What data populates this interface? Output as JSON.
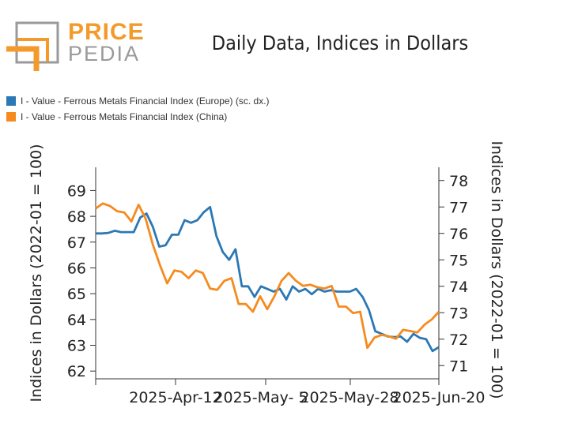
{
  "logo": {
    "word1": "PRICE",
    "word2": "PEDIA"
  },
  "colors": {
    "europe": "#2a78b5",
    "china": "#f58b1f",
    "logo_orange": "#f39a2b",
    "logo_gray": "#9a9a9a"
  },
  "chart_data": {
    "type": "line",
    "title": "Daily Data, Indices in Dollars",
    "ylabel_left": "Indices in Dollars (2022-01 = 100)",
    "ylabel_right": "Indices in Dollars (2022-01 = 100)",
    "x_tick_labels": [
      "2025-Apr-12",
      "2025-May- 5",
      "2025-May-28",
      "2025-Jun-20"
    ],
    "y_left_ticks": [
      62,
      63,
      64,
      65,
      66,
      67,
      68,
      69
    ],
    "y_left_lim": [
      61.7,
      69.9
    ],
    "y_right_ticks": [
      71,
      72,
      73,
      74,
      75,
      76,
      77,
      78
    ],
    "y_right_lim": [
      70.5,
      78.5
    ],
    "series": [
      {
        "name": "I - Value - Ferrous Metals Financial Index (Europe) (sc. dx.)",
        "axis": "right",
        "values": [
          76.0,
          76.0,
          76.02,
          76.1,
          76.05,
          76.05,
          76.05,
          76.6,
          76.75,
          76.25,
          75.5,
          75.55,
          75.95,
          75.95,
          76.5,
          76.4,
          76.5,
          76.8,
          77.0,
          75.9,
          75.3,
          75.0,
          75.4,
          74.0,
          74.0,
          73.6,
          74.0,
          73.9,
          73.8,
          73.9,
          73.5,
          74.0,
          73.8,
          73.9,
          73.7,
          73.9,
          73.8,
          73.85,
          73.8,
          73.8,
          73.8,
          73.9,
          73.6,
          73.1,
          72.3,
          72.2,
          72.1,
          72.08,
          72.1,
          71.9,
          72.2,
          72.05,
          72.0,
          71.55,
          71.7
        ]
      },
      {
        "name": "I - Value - Ferrous Metals Financial Index (China)",
        "axis": "left",
        "values": [
          68.3,
          68.5,
          68.4,
          68.2,
          68.15,
          67.8,
          68.45,
          67.9,
          66.9,
          66.1,
          65.4,
          65.9,
          65.85,
          65.6,
          65.9,
          65.8,
          65.2,
          65.15,
          65.5,
          65.6,
          64.6,
          64.6,
          64.3,
          64.9,
          64.4,
          64.9,
          65.5,
          65.8,
          65.5,
          65.3,
          65.35,
          65.25,
          65.2,
          65.3,
          64.5,
          64.5,
          64.25,
          64.3,
          62.9,
          63.3,
          63.4,
          63.35,
          63.25,
          63.6,
          63.55,
          63.5,
          63.8,
          64.0,
          64.3
        ]
      }
    ]
  }
}
